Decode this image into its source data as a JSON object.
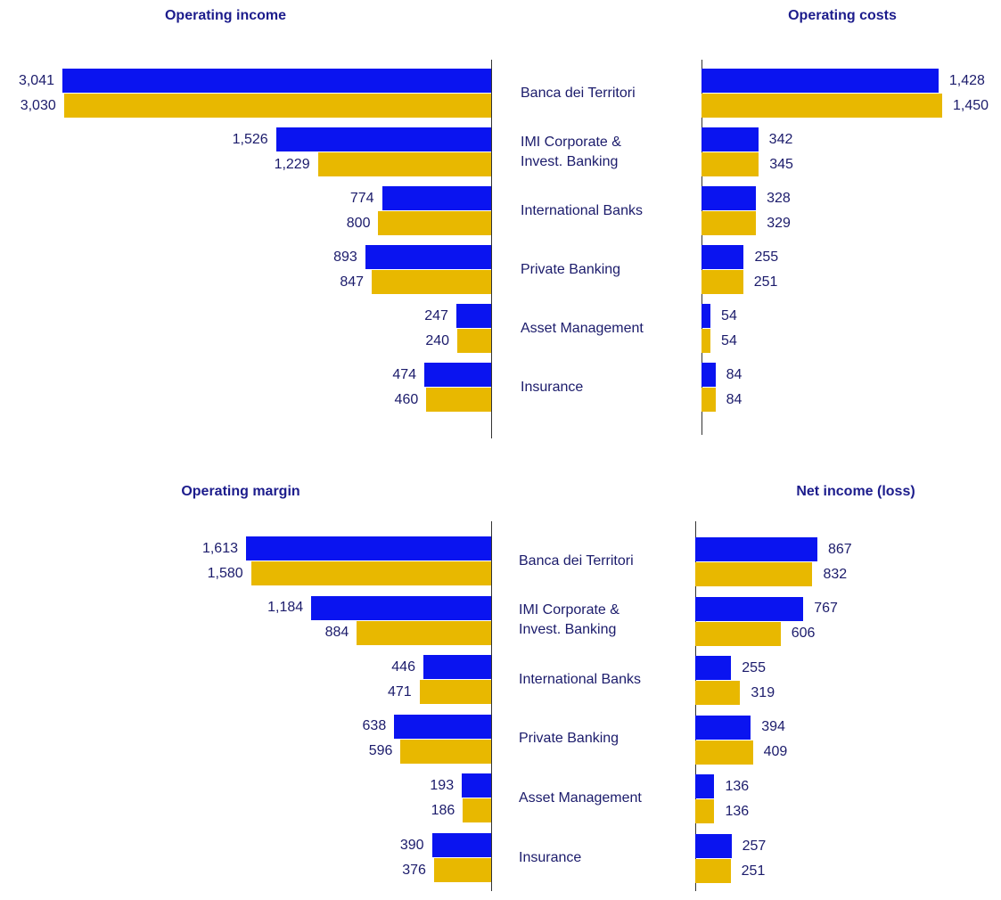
{
  "chart_data": [
    {
      "type": "bar",
      "title": "Operating income",
      "categories": [
        "Banca dei Territori",
        "IMI Corporate &\nInvest. Banking",
        "International  Banks",
        "Private Banking",
        "Asset Management",
        "Insurance"
      ],
      "series": [
        {
          "color": "#0a14f0",
          "values": [
            3041,
            1526,
            774,
            893,
            247,
            474
          ],
          "value_labels": [
            "3,041",
            "1,526",
            "774",
            "893",
            "247",
            "474"
          ]
        },
        {
          "color": "#e8b800",
          "values": [
            3030,
            1229,
            800,
            847,
            240,
            460
          ],
          "value_labels": [
            "3,030",
            "1,229",
            "800",
            "847",
            "240",
            "460"
          ]
        }
      ]
    },
    {
      "type": "bar",
      "title": "Operating costs",
      "series": [
        {
          "color": "#0a14f0",
          "values": [
            1428,
            342,
            328,
            255,
            54,
            84
          ],
          "value_labels": [
            "1,428",
            "342",
            "328",
            "255",
            "54",
            "84"
          ]
        },
        {
          "color": "#e8b800",
          "values": [
            1450,
            345,
            329,
            251,
            54,
            84
          ],
          "value_labels": [
            "1,450",
            "345",
            "329",
            "251",
            "54",
            "84"
          ]
        }
      ]
    },
    {
      "type": "bar",
      "title": "Operating margin",
      "categories": [
        "Banca dei Territori",
        "IMI Corporate &\nInvest. Banking",
        "International  Banks",
        "Private Banking",
        "Asset Management",
        "Insurance"
      ],
      "series": [
        {
          "color": "#0a14f0",
          "values": [
            1613,
            1184,
            446,
            638,
            193,
            390
          ],
          "value_labels": [
            "1,613",
            "1,184",
            "446",
            "638",
            "193",
            "390"
          ]
        },
        {
          "color": "#e8b800",
          "values": [
            1580,
            884,
            471,
            596,
            186,
            376
          ],
          "value_labels": [
            "1,580",
            "884",
            "471",
            "596",
            "186",
            "376"
          ]
        }
      ]
    },
    {
      "type": "bar",
      "title": "Net income (loss)",
      "series": [
        {
          "color": "#0a14f0",
          "values": [
            867,
            767,
            255,
            394,
            136,
            257
          ],
          "value_labels": [
            "867",
            "767",
            "255",
            "394",
            "136",
            "257"
          ]
        },
        {
          "color": "#e8b800",
          "values": [
            832,
            606,
            319,
            409,
            136,
            251
          ],
          "value_labels": [
            "832",
            "606",
            "319",
            "409",
            "136",
            "251"
          ]
        }
      ]
    }
  ]
}
